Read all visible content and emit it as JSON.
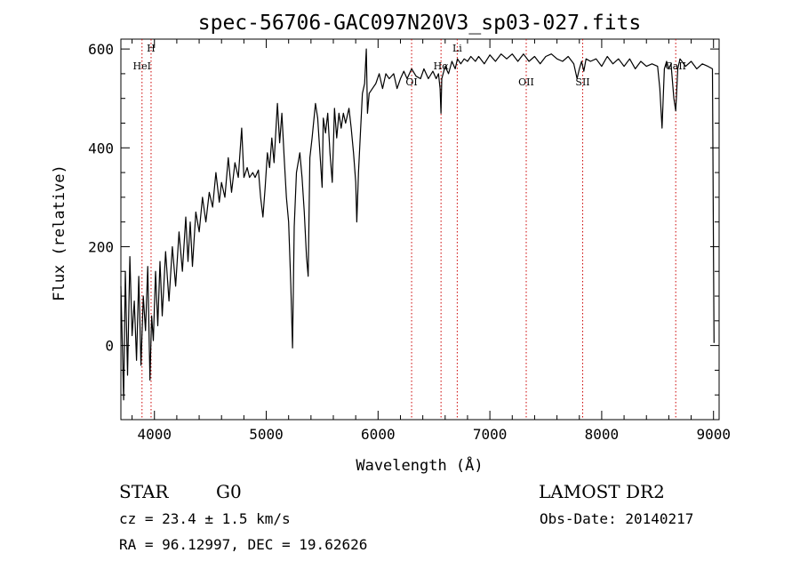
{
  "chart_data": {
    "type": "line",
    "title": "spec-56706-GAC097N20V3_sp03-027.fits",
    "xlabel": "Wavelength (Å)",
    "ylabel": "Flux (relative)",
    "xlim": [
      3700,
      9050
    ],
    "ylim": [
      -150,
      620
    ],
    "xticks": [
      4000,
      5000,
      6000,
      7000,
      8000,
      9000
    ],
    "yticks": [
      0,
      200,
      400,
      600
    ],
    "grid": false,
    "line_color": "#000000",
    "marker_color": "#cc0000",
    "spectrum": [
      [
        3700,
        120
      ],
      [
        3725,
        -110
      ],
      [
        3740,
        150
      ],
      [
        3760,
        -60
      ],
      [
        3780,
        180
      ],
      [
        3800,
        20
      ],
      [
        3820,
        90
      ],
      [
        3840,
        -30
      ],
      [
        3860,
        140
      ],
      [
        3880,
        -40
      ],
      [
        3900,
        100
      ],
      [
        3920,
        30
      ],
      [
        3940,
        160
      ],
      [
        3960,
        -70
      ],
      [
        3975,
        60
      ],
      [
        3990,
        10
      ],
      [
        4010,
        150
      ],
      [
        4030,
        40
      ],
      [
        4050,
        170
      ],
      [
        4070,
        60
      ],
      [
        4100,
        190
      ],
      [
        4130,
        90
      ],
      [
        4160,
        200
      ],
      [
        4190,
        120
      ],
      [
        4220,
        230
      ],
      [
        4250,
        150
      ],
      [
        4280,
        260
      ],
      [
        4300,
        170
      ],
      [
        4320,
        250
      ],
      [
        4340,
        160
      ],
      [
        4370,
        270
      ],
      [
        4400,
        230
      ],
      [
        4430,
        300
      ],
      [
        4460,
        250
      ],
      [
        4490,
        310
      ],
      [
        4520,
        280
      ],
      [
        4550,
        350
      ],
      [
        4580,
        290
      ],
      [
        4600,
        330
      ],
      [
        4630,
        300
      ],
      [
        4660,
        380
      ],
      [
        4690,
        310
      ],
      [
        4720,
        370
      ],
      [
        4750,
        340
      ],
      [
        4780,
        440
      ],
      [
        4800,
        340
      ],
      [
        4830,
        360
      ],
      [
        4850,
        340
      ],
      [
        4880,
        350
      ],
      [
        4900,
        340
      ],
      [
        4930,
        355
      ],
      [
        4950,
        300
      ],
      [
        4970,
        260
      ],
      [
        4990,
        320
      ],
      [
        5010,
        390
      ],
      [
        5030,
        360
      ],
      [
        5050,
        420
      ],
      [
        5070,
        370
      ],
      [
        5100,
        490
      ],
      [
        5120,
        410
      ],
      [
        5140,
        470
      ],
      [
        5160,
        380
      ],
      [
        5180,
        300
      ],
      [
        5200,
        250
      ],
      [
        5220,
        120
      ],
      [
        5235,
        -5
      ],
      [
        5250,
        240
      ],
      [
        5270,
        350
      ],
      [
        5300,
        390
      ],
      [
        5320,
        340
      ],
      [
        5340,
        270
      ],
      [
        5360,
        180
      ],
      [
        5375,
        140
      ],
      [
        5390,
        380
      ],
      [
        5410,
        420
      ],
      [
        5440,
        490
      ],
      [
        5460,
        460
      ],
      [
        5480,
        390
      ],
      [
        5500,
        320
      ],
      [
        5510,
        460
      ],
      [
        5530,
        430
      ],
      [
        5550,
        470
      ],
      [
        5570,
        390
      ],
      [
        5590,
        330
      ],
      [
        5610,
        480
      ],
      [
        5630,
        420
      ],
      [
        5650,
        470
      ],
      [
        5670,
        440
      ],
      [
        5690,
        470
      ],
      [
        5710,
        450
      ],
      [
        5740,
        480
      ],
      [
        5760,
        440
      ],
      [
        5780,
        390
      ],
      [
        5800,
        330
      ],
      [
        5810,
        250
      ],
      [
        5825,
        350
      ],
      [
        5840,
        420
      ],
      [
        5860,
        510
      ],
      [
        5880,
        530
      ],
      [
        5895,
        600
      ],
      [
        5905,
        470
      ],
      [
        5920,
        510
      ],
      [
        5950,
        520
      ],
      [
        5980,
        530
      ],
      [
        6010,
        550
      ],
      [
        6040,
        520
      ],
      [
        6070,
        550
      ],
      [
        6100,
        540
      ],
      [
        6140,
        550
      ],
      [
        6170,
        520
      ],
      [
        6200,
        540
      ],
      [
        6230,
        555
      ],
      [
        6260,
        540
      ],
      [
        6300,
        560
      ],
      [
        6340,
        545
      ],
      [
        6380,
        540
      ],
      [
        6410,
        560
      ],
      [
        6450,
        540
      ],
      [
        6490,
        555
      ],
      [
        6520,
        540
      ],
      [
        6540,
        550
      ],
      [
        6555,
        520
      ],
      [
        6563,
        470
      ],
      [
        6570,
        540
      ],
      [
        6600,
        565
      ],
      [
        6630,
        550
      ],
      [
        6660,
        575
      ],
      [
        6690,
        560
      ],
      [
        6710,
        580
      ],
      [
        6740,
        570
      ],
      [
        6770,
        580
      ],
      [
        6800,
        575
      ],
      [
        6830,
        585
      ],
      [
        6870,
        575
      ],
      [
        6900,
        585
      ],
      [
        6950,
        570
      ],
      [
        7000,
        588
      ],
      [
        7050,
        575
      ],
      [
        7100,
        590
      ],
      [
        7150,
        580
      ],
      [
        7200,
        590
      ],
      [
        7250,
        575
      ],
      [
        7300,
        590
      ],
      [
        7350,
        575
      ],
      [
        7400,
        585
      ],
      [
        7450,
        570
      ],
      [
        7500,
        585
      ],
      [
        7550,
        590
      ],
      [
        7600,
        580
      ],
      [
        7650,
        575
      ],
      [
        7700,
        585
      ],
      [
        7750,
        570
      ],
      [
        7780,
        540
      ],
      [
        7800,
        560
      ],
      [
        7820,
        575
      ],
      [
        7840,
        555
      ],
      [
        7860,
        580
      ],
      [
        7900,
        575
      ],
      [
        7950,
        580
      ],
      [
        8000,
        565
      ],
      [
        8050,
        585
      ],
      [
        8100,
        570
      ],
      [
        8150,
        580
      ],
      [
        8200,
        565
      ],
      [
        8250,
        580
      ],
      [
        8300,
        560
      ],
      [
        8350,
        575
      ],
      [
        8400,
        565
      ],
      [
        8450,
        570
      ],
      [
        8500,
        565
      ],
      [
        8520,
        520
      ],
      [
        8540,
        440
      ],
      [
        8560,
        560
      ],
      [
        8580,
        575
      ],
      [
        8600,
        560
      ],
      [
        8620,
        570
      ],
      [
        8645,
        500
      ],
      [
        8662,
        475
      ],
      [
        8680,
        560
      ],
      [
        8700,
        580
      ],
      [
        8750,
        565
      ],
      [
        8800,
        575
      ],
      [
        8850,
        560
      ],
      [
        8900,
        570
      ],
      [
        8950,
        565
      ],
      [
        8990,
        560
      ],
      [
        9000,
        180
      ],
      [
        9005,
        5
      ]
    ],
    "lines": [
      {
        "label": "H",
        "x": 3970,
        "row": 1
      },
      {
        "label": "HeI",
        "x": 3889,
        "row": 2
      },
      {
        "label": "OI",
        "x": 6300,
        "row": 3
      },
      {
        "label": "Hα",
        "x": 6563,
        "row": 2
      },
      {
        "label": "Li",
        "x": 6708,
        "row": 1
      },
      {
        "label": "OII",
        "x": 7325,
        "row": 3
      },
      {
        "label": "SII",
        "x": 7830,
        "row": 3
      },
      {
        "label": "CaII",
        "x": 8662,
        "row": 2
      }
    ]
  },
  "info": {
    "class_label": "STAR",
    "subclass": "G0",
    "survey": "LAMOST DR2",
    "redshift_line": "cz = 23.4 ± 1.5 km/s",
    "obs_date": "Obs-Date: 20140217",
    "coords": "RA =  96.12997, DEC =  19.62626"
  }
}
